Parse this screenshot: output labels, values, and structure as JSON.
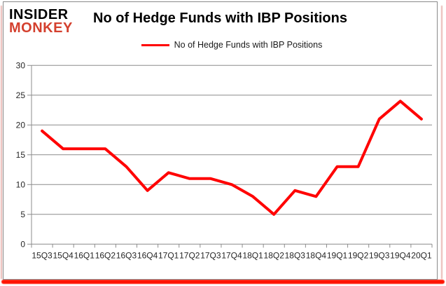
{
  "logo": {
    "line1": "INSIDER",
    "line2": "MONKEY"
  },
  "title": "No of Hedge Funds with IBP Positions",
  "legend": {
    "label": "No of Hedge Funds with IBP Positions"
  },
  "colors": {
    "series": "#ff0000",
    "grid": "#8c8c8c",
    "frame": "#8a8a8a",
    "tick_text": "#262626",
    "logo_top": "#000000",
    "logo_bottom": "#d4402e",
    "accent_pink": "#e9b6b2",
    "accent_red": "#ff1400"
  },
  "chart_data": {
    "type": "line",
    "title": "No of Hedge Funds with IBP Positions",
    "categories": [
      "15Q3",
      "15Q4",
      "16Q1",
      "16Q2",
      "16Q3",
      "16Q4",
      "17Q1",
      "17Q2",
      "17Q3",
      "17Q4",
      "18Q1",
      "18Q2",
      "18Q3",
      "18Q4",
      "19Q1",
      "19Q2",
      "19Q3",
      "19Q4",
      "20Q1"
    ],
    "series": [
      {
        "name": "No of Hedge Funds with IBP Positions",
        "values": [
          19,
          16,
          16,
          16,
          13,
          9,
          12,
          11,
          11,
          10,
          8,
          5,
          9,
          8,
          13,
          13,
          21,
          24,
          21
        ],
        "color": "#ff0000"
      }
    ],
    "xlabel": "",
    "ylabel": "",
    "ylim": [
      0,
      30
    ],
    "yticks": [
      0,
      5,
      10,
      15,
      20,
      25,
      30
    ],
    "grid": true,
    "legend_position": "top"
  }
}
